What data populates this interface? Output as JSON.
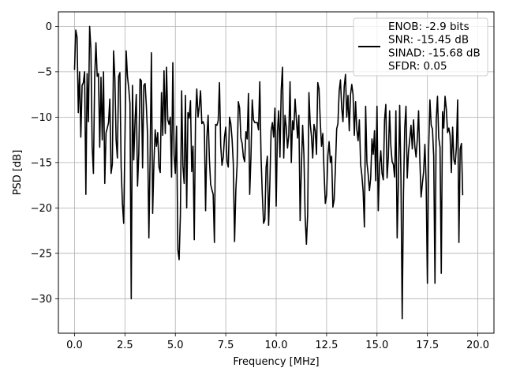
{
  "chart_data": {
    "type": "line",
    "title": "",
    "xlabel": "Frequency [MHz]",
    "ylabel": "PSD [dB]",
    "xlim": [
      -0.8,
      20.8
    ],
    "ylim": [
      -33.8,
      1.6
    ],
    "xticks": [
      0.0,
      2.5,
      5.0,
      7.5,
      10.0,
      12.5,
      15.0,
      17.5,
      20.0
    ],
    "xtick_labels": [
      "0.0",
      "2.5",
      "5.0",
      "7.5",
      "10.0",
      "12.5",
      "15.0",
      "17.5",
      "20.0"
    ],
    "yticks": [
      0,
      -5,
      -10,
      -15,
      -20,
      -25,
      -30
    ],
    "ytick_labels": [
      "0",
      "−5",
      "−10",
      "−15",
      "−20",
      "−25",
      "−30"
    ],
    "grid": true,
    "legend_position": "top-right",
    "legend_lines": [
      "ENOB: -2.9 bits",
      "SNR: -15.45 dB",
      "SINAD: -15.68 dB",
      "SFDR: 0.05"
    ],
    "line_color": "#000000",
    "series": [
      {
        "x_start": 0.0,
        "x_step": 0.0625,
        "values": [
          -4.8,
          -0.4,
          -1.2,
          -9.5,
          -5.0,
          -12.2,
          -6.5,
          -6.2,
          -5.0,
          -18.5,
          -5.2,
          -10.5,
          0.0,
          -2.5,
          -13.2,
          -16.2,
          -5.6,
          -1.8,
          -5.5,
          -5.2,
          -13.3,
          -5.6,
          -12.5,
          -5.0,
          -17.3,
          -11.7,
          -11.2,
          -10.6,
          -8.0,
          -16.2,
          -15.2,
          -2.7,
          -5.7,
          -12.5,
          -14.5,
          -5.5,
          -5.1,
          -15.5,
          -19.5,
          -21.7,
          -12.5,
          -2.7,
          -5.5,
          -6.8,
          -8.5,
          -30.0,
          -6.5,
          -14.7,
          -10.5,
          -7.5,
          -17.6,
          -14.0,
          -5.8,
          -6.0,
          -15.6,
          -6.5,
          -6.3,
          -8.8,
          -12.1,
          -23.3,
          -14.2,
          -2.9,
          -20.6,
          -15.0,
          -11.4,
          -13.2,
          -11.7,
          -15.5,
          -16.1,
          -7.3,
          -12.0,
          -4.9,
          -11.8,
          -4.5,
          -10.3,
          -10.8,
          -10.0,
          -16.6,
          -4.0,
          -14.2,
          -16.2,
          -11.0,
          -24.6,
          -25.7,
          -20.8,
          -7.1,
          -15.4,
          -17.3,
          -7.6,
          -20.0,
          -9.5,
          -10.1,
          -8.2,
          -16.0,
          -13.2,
          -23.5,
          -10.2,
          -6.9,
          -10.0,
          -8.8,
          -7.1,
          -10.7,
          -10.5,
          -10.9,
          -20.3,
          -12.3,
          -9.8,
          -14.6,
          -17.4,
          -18.0,
          -18.5,
          -23.8,
          -10.8,
          -10.9,
          -10.4,
          -6.2,
          -13.1,
          -15.3,
          -14.4,
          -12.2,
          -11.1,
          -14.9,
          -15.5,
          -10.0,
          -10.7,
          -12.4,
          -15.2,
          -23.7,
          -18.0,
          -15.3,
          -8.3,
          -9.0,
          -12.3,
          -12.9,
          -14.4,
          -14.9,
          -11.6,
          -12.4,
          -7.4,
          -18.5,
          -14.3,
          -8.1,
          -10.3,
          -10.6,
          -10.6,
          -10.6,
          -11.4,
          -6.1,
          -14.4,
          -18.5,
          -21.7,
          -21.3,
          -15.5,
          -14.3,
          -21.9,
          -17.2,
          -11.5,
          -10.6,
          -12.2,
          -9.0,
          -19.8,
          -11.6,
          -9.3,
          -14.4,
          -7.0,
          -4.5,
          -14.5,
          -9.8,
          -11.1,
          -13.4,
          -12.0,
          -6.1,
          -15.0,
          -10.4,
          -11.4,
          -8.0,
          -10.2,
          -12.3,
          -9.8,
          -21.4,
          -15.6,
          -10.9,
          -14.1,
          -21.0,
          -24.0,
          -20.7,
          -7.3,
          -10.7,
          -12.1,
          -14.5,
          -10.8,
          -11.5,
          -14.1,
          -6.2,
          -6.9,
          -10.5,
          -13.2,
          -11.8,
          -16.0,
          -19.5,
          -18.6,
          -14.3,
          -12.7,
          -15.0,
          -14.3,
          -19.9,
          -19.1,
          -15.6,
          -11.3,
          -10.7,
          -7.1,
          -5.9,
          -9.0,
          -10.5,
          -6.6,
          -5.3,
          -10.0,
          -7.6,
          -11.5,
          -7.5,
          -6.4,
          -7.5,
          -12.0,
          -8.3,
          -11.4,
          -12.6,
          -10.3,
          -15.2,
          -16.4,
          -18.2,
          -22.1,
          -8.8,
          -15.0,
          -16.3,
          -18.1,
          -16.7,
          -12.4,
          -14.1,
          -11.5,
          -17.0,
          -8.8,
          -20.3,
          -15.4,
          -13.7,
          -16.2,
          -16.9,
          -10.3,
          -8.6,
          -16.7,
          -14.4,
          -9.3,
          -13.2,
          -14.9,
          -15.2,
          -16.6,
          -9.3,
          -23.3,
          -17.2,
          -8.7,
          -16.5,
          -32.2,
          -18.5,
          -11.2,
          -8.8,
          -16.7,
          -13.8,
          -12.4,
          -10.9,
          -13.5,
          -10.3,
          -13.2,
          -14.4,
          -12.4,
          -9.3,
          -14.7,
          -18.8,
          -17.3,
          -16.0,
          -13.0,
          -17.3,
          -28.3,
          -13.5,
          -8.1,
          -10.9,
          -11.3,
          -14.3,
          -28.3,
          -10.3,
          -7.7,
          -12.3,
          -13.3,
          -27.2,
          -9.4,
          -11.2,
          -7.7,
          -9.1,
          -11.7,
          -11.2,
          -12.0,
          -16.1,
          -11.1,
          -14.7,
          -15.2,
          -13.3,
          -8.1,
          -23.8,
          -13.5,
          -12.9,
          -18.6
        ]
      }
    ]
  }
}
